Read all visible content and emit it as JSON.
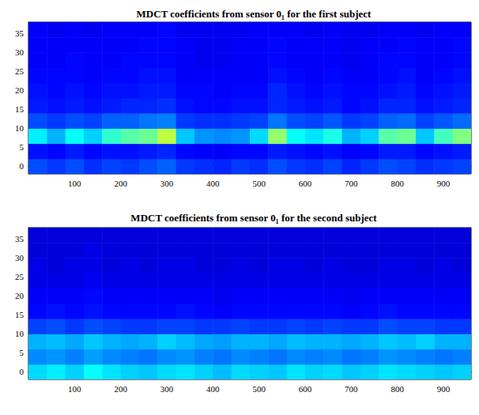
{
  "chart_data": [
    {
      "type": "heatmap",
      "title": "MDCT coefficients from sensor 0₁ for the first subject",
      "xlim": [
        0,
        960
      ],
      "xticks": [
        100,
        200,
        300,
        400,
        500,
        600,
        700,
        800,
        900
      ],
      "ylim": [
        -2,
        38
      ],
      "yticks": [
        0,
        5,
        10,
        15,
        20,
        25,
        30,
        35
      ],
      "color": "jet",
      "color_range": [
        0,
        1
      ],
      "x_bins": [
        0,
        40,
        80,
        120,
        160,
        200,
        240,
        280,
        320,
        360,
        400,
        440,
        480,
        520,
        560,
        600,
        640,
        680,
        720,
        760,
        800,
        840,
        880,
        920,
        960
      ],
      "y_bins": [
        -2,
        2,
        6,
        10,
        14,
        18,
        22,
        26,
        30,
        34,
        38
      ],
      "cells": [
        [
          0.2,
          0.18,
          0.2,
          0.17,
          0.19,
          0.18,
          0.2,
          0.22,
          0.18,
          0.17,
          0.16,
          0.18,
          0.17,
          0.2,
          0.18,
          0.17,
          0.19,
          0.16,
          0.18,
          0.2,
          0.19,
          0.17,
          0.18,
          0.19
        ],
        [
          0.14,
          0.13,
          0.15,
          0.13,
          0.14,
          0.14,
          0.15,
          0.16,
          0.13,
          0.12,
          0.12,
          0.13,
          0.13,
          0.15,
          0.14,
          0.13,
          0.14,
          0.12,
          0.13,
          0.15,
          0.15,
          0.13,
          0.14,
          0.15
        ],
        [
          0.36,
          0.3,
          0.38,
          0.33,
          0.42,
          0.46,
          0.48,
          0.56,
          0.32,
          0.27,
          0.26,
          0.27,
          0.34,
          0.52,
          0.38,
          0.35,
          0.4,
          0.3,
          0.33,
          0.46,
          0.48,
          0.32,
          0.44,
          0.5
        ],
        [
          0.2,
          0.18,
          0.2,
          0.19,
          0.22,
          0.22,
          0.24,
          0.25,
          0.18,
          0.17,
          0.17,
          0.18,
          0.19,
          0.24,
          0.2,
          0.19,
          0.21,
          0.18,
          0.19,
          0.22,
          0.23,
          0.19,
          0.21,
          0.23
        ],
        [
          0.15,
          0.14,
          0.15,
          0.14,
          0.15,
          0.16,
          0.16,
          0.17,
          0.14,
          0.13,
          0.13,
          0.14,
          0.14,
          0.16,
          0.15,
          0.14,
          0.15,
          0.13,
          0.14,
          0.16,
          0.16,
          0.14,
          0.15,
          0.16
        ],
        [
          0.14,
          0.13,
          0.14,
          0.13,
          0.14,
          0.14,
          0.15,
          0.15,
          0.13,
          0.13,
          0.12,
          0.13,
          0.13,
          0.16,
          0.14,
          0.13,
          0.14,
          0.13,
          0.13,
          0.14,
          0.15,
          0.13,
          0.14,
          0.15
        ],
        [
          0.13,
          0.13,
          0.13,
          0.12,
          0.13,
          0.13,
          0.14,
          0.14,
          0.12,
          0.12,
          0.12,
          0.12,
          0.12,
          0.14,
          0.13,
          0.12,
          0.13,
          0.12,
          0.12,
          0.13,
          0.14,
          0.12,
          0.13,
          0.14
        ],
        [
          0.12,
          0.12,
          0.13,
          0.12,
          0.12,
          0.13,
          0.13,
          0.13,
          0.12,
          0.11,
          0.11,
          0.12,
          0.12,
          0.13,
          0.12,
          0.12,
          0.12,
          0.11,
          0.12,
          0.13,
          0.13,
          0.12,
          0.12,
          0.13
        ],
        [
          0.12,
          0.12,
          0.12,
          0.12,
          0.12,
          0.12,
          0.13,
          0.13,
          0.12,
          0.11,
          0.11,
          0.12,
          0.12,
          0.13,
          0.12,
          0.12,
          0.12,
          0.11,
          0.12,
          0.12,
          0.13,
          0.12,
          0.12,
          0.13
        ],
        [
          0.12,
          0.11,
          0.12,
          0.11,
          0.12,
          0.12,
          0.12,
          0.13,
          0.11,
          0.11,
          0.11,
          0.11,
          0.12,
          0.12,
          0.12,
          0.11,
          0.12,
          0.11,
          0.11,
          0.12,
          0.12,
          0.11,
          0.12,
          0.12
        ]
      ]
    },
    {
      "type": "heatmap",
      "title": "MDCT coefficients from sensor 0₁ for the second subject",
      "xlim": [
        0,
        960
      ],
      "xticks": [
        100,
        200,
        300,
        400,
        500,
        600,
        700,
        800,
        900
      ],
      "ylim": [
        -2,
        38
      ],
      "yticks": [
        0,
        5,
        10,
        15,
        20,
        25,
        30,
        35
      ],
      "color": "jet",
      "color_range": [
        0,
        1
      ],
      "x_bins": [
        0,
        40,
        80,
        120,
        160,
        200,
        240,
        280,
        320,
        360,
        400,
        440,
        480,
        520,
        560,
        600,
        640,
        680,
        720,
        760,
        800,
        840,
        880,
        920,
        960
      ],
      "y_bins": [
        -2,
        2,
        6,
        10,
        14,
        18,
        22,
        26,
        30,
        34,
        38
      ],
      "cells": [
        [
          0.34,
          0.36,
          0.33,
          0.38,
          0.35,
          0.33,
          0.32,
          0.34,
          0.35,
          0.33,
          0.31,
          0.34,
          0.33,
          0.32,
          0.35,
          0.33,
          0.34,
          0.32,
          0.33,
          0.35,
          0.34,
          0.33,
          0.32,
          0.33
        ],
        [
          0.26,
          0.27,
          0.25,
          0.28,
          0.26,
          0.25,
          0.24,
          0.26,
          0.27,
          0.25,
          0.24,
          0.26,
          0.25,
          0.24,
          0.26,
          0.25,
          0.26,
          0.24,
          0.25,
          0.27,
          0.26,
          0.25,
          0.24,
          0.25
        ],
        [
          0.3,
          0.31,
          0.29,
          0.32,
          0.3,
          0.29,
          0.3,
          0.33,
          0.31,
          0.29,
          0.28,
          0.3,
          0.3,
          0.29,
          0.31,
          0.3,
          0.3,
          0.29,
          0.3,
          0.32,
          0.31,
          0.33,
          0.3,
          0.3
        ],
        [
          0.19,
          0.2,
          0.18,
          0.2,
          0.19,
          0.18,
          0.18,
          0.19,
          0.19,
          0.18,
          0.18,
          0.19,
          0.18,
          0.18,
          0.19,
          0.18,
          0.19,
          0.18,
          0.18,
          0.2,
          0.19,
          0.19,
          0.18,
          0.18
        ],
        [
          0.13,
          0.14,
          0.13,
          0.14,
          0.13,
          0.13,
          0.13,
          0.13,
          0.14,
          0.13,
          0.12,
          0.13,
          0.13,
          0.13,
          0.13,
          0.13,
          0.13,
          0.12,
          0.13,
          0.14,
          0.13,
          0.13,
          0.13,
          0.13
        ],
        [
          0.12,
          0.12,
          0.12,
          0.13,
          0.12,
          0.12,
          0.12,
          0.12,
          0.12,
          0.12,
          0.11,
          0.12,
          0.12,
          0.12,
          0.12,
          0.12,
          0.12,
          0.11,
          0.12,
          0.12,
          0.12,
          0.12,
          0.12,
          0.12
        ],
        [
          0.1,
          0.1,
          0.1,
          0.11,
          0.1,
          0.1,
          0.1,
          0.1,
          0.1,
          0.1,
          0.1,
          0.1,
          0.1,
          0.1,
          0.1,
          0.1,
          0.1,
          0.1,
          0.1,
          0.1,
          0.1,
          0.1,
          0.1,
          0.1
        ],
        [
          0.1,
          0.09,
          0.1,
          0.1,
          0.09,
          0.1,
          0.09,
          0.1,
          0.1,
          0.09,
          0.09,
          0.1,
          0.09,
          0.1,
          0.1,
          0.09,
          0.1,
          0.09,
          0.09,
          0.1,
          0.1,
          0.09,
          0.1,
          0.09
        ],
        [
          0.09,
          0.09,
          0.09,
          0.1,
          0.09,
          0.09,
          0.09,
          0.09,
          0.09,
          0.09,
          0.09,
          0.09,
          0.09,
          0.09,
          0.09,
          0.09,
          0.09,
          0.09,
          0.09,
          0.09,
          0.09,
          0.09,
          0.09,
          0.09
        ],
        [
          0.09,
          0.09,
          0.09,
          0.09,
          0.09,
          0.09,
          0.09,
          0.09,
          0.09,
          0.09,
          0.09,
          0.09,
          0.09,
          0.09,
          0.09,
          0.09,
          0.09,
          0.09,
          0.09,
          0.09,
          0.09,
          0.09,
          0.09,
          0.09
        ]
      ]
    }
  ]
}
